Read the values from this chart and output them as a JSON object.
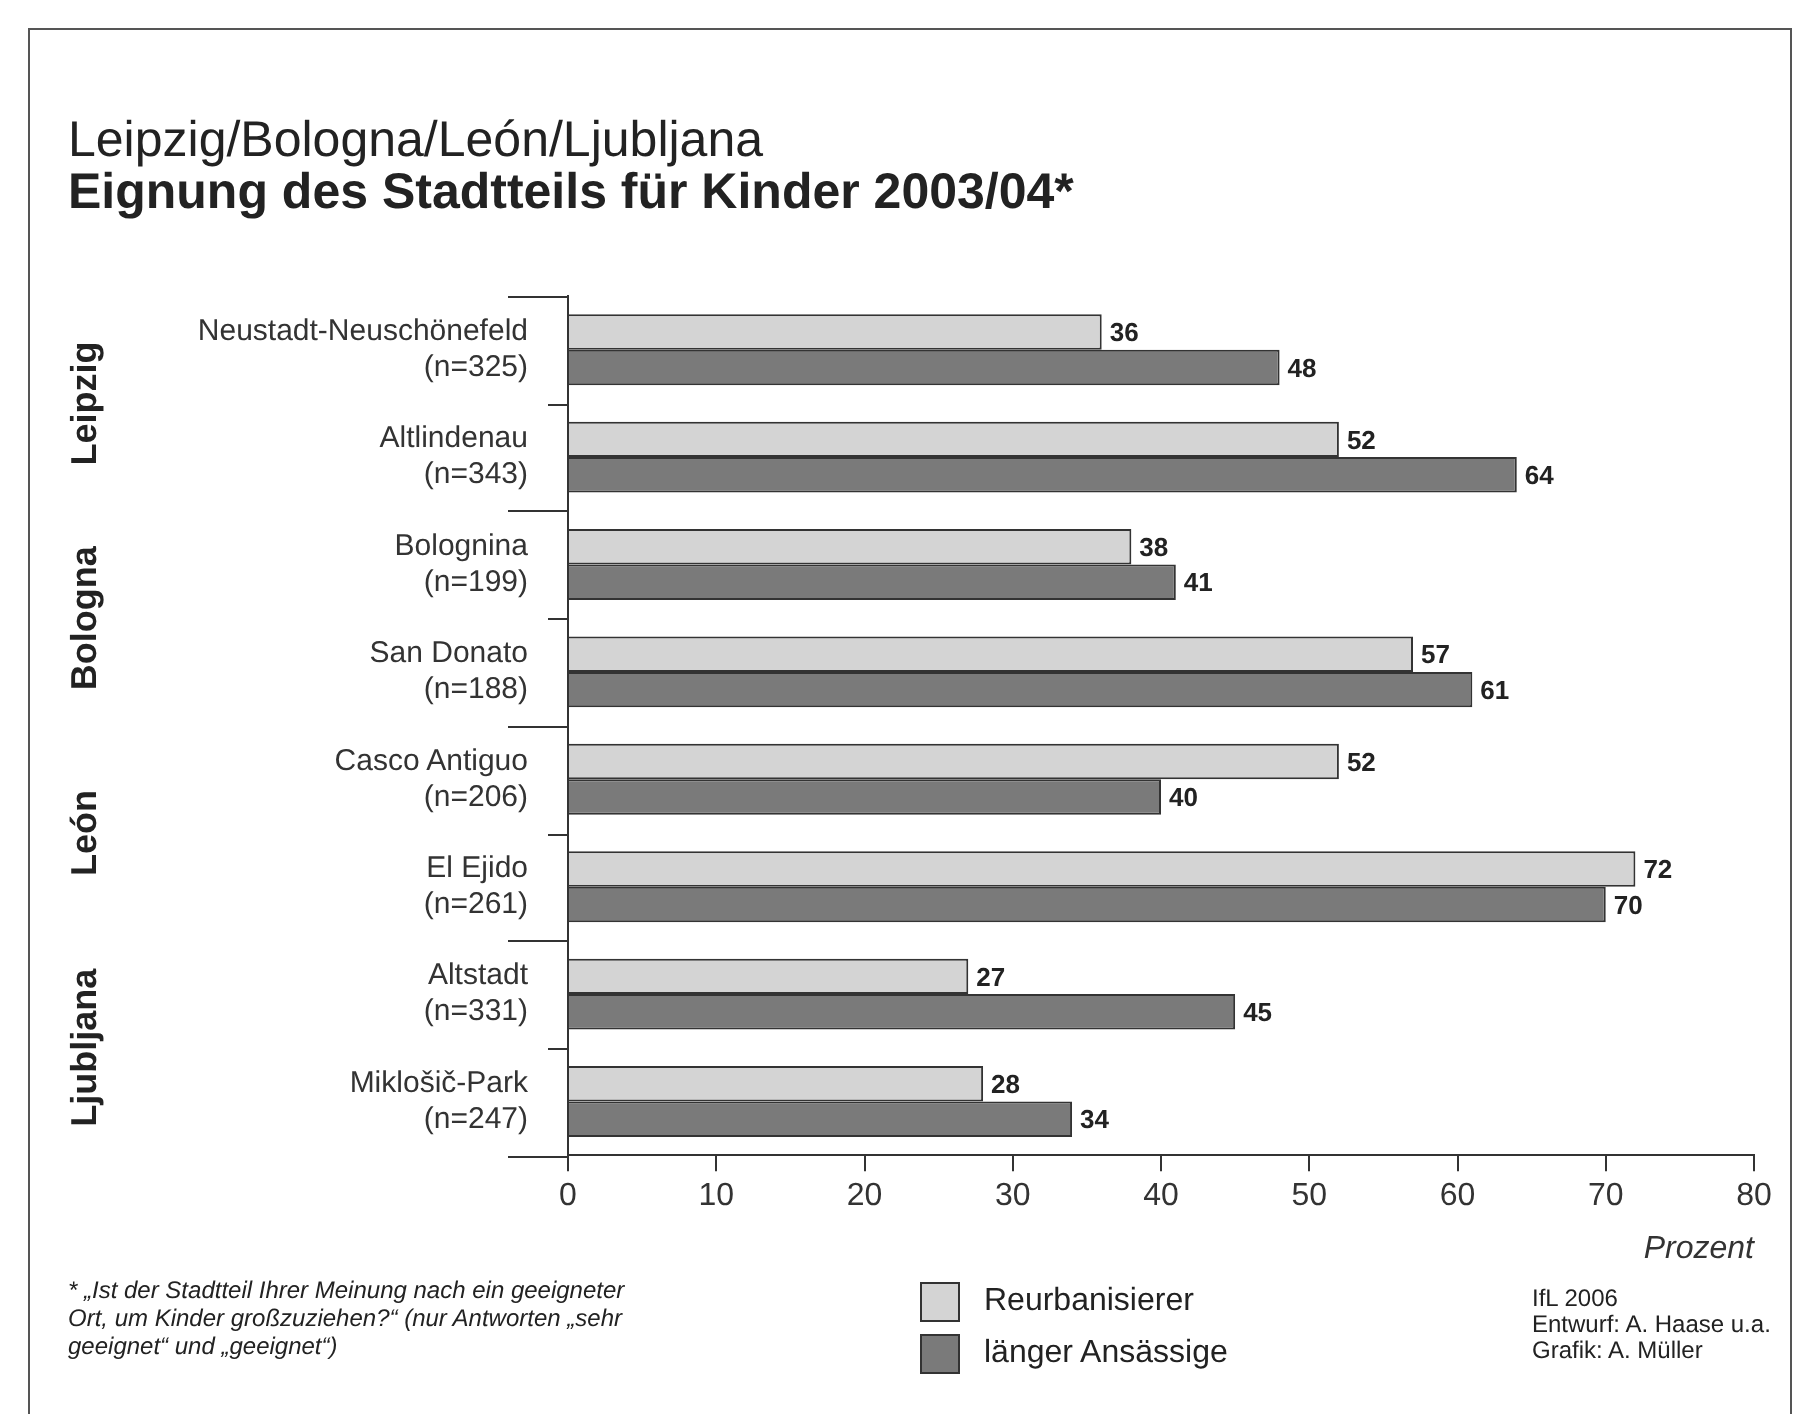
{
  "chart_data": {
    "type": "bar",
    "orientation": "horizontal",
    "subtitle": "Leipzig/Bologna/León/Ljubljana",
    "title": "Eignung des Stadtteils für Kinder 2003/04*",
    "xlabel": "Prozent",
    "categories": [
      "Neustadt-Neuschönefeld\n(n=325)",
      "Altlindenau\n(n=343)",
      "Bolognina\n(n=199)",
      "San Donato\n(n=188)",
      "Casco Antiguo\n(n=206)",
      "El Ejido\n(n=261)",
      "Altstadt\n(n=331)",
      "Miklošič-Park\n(n=247)"
    ],
    "series": [
      {
        "name": "Reurbanisierer",
        "color": "#d4d4d4",
        "values": [
          36,
          52,
          38,
          57,
          52,
          72,
          27,
          28
        ]
      },
      {
        "name": "länger Ansässige",
        "color": "#7a7a7a",
        "values": [
          48,
          64,
          41,
          61,
          40,
          70,
          45,
          34
        ]
      }
    ],
    "xlim": [
      0,
      80
    ],
    "xticks": [
      0,
      10,
      20,
      30,
      40,
      50,
      60,
      70,
      80
    ],
    "grid": false,
    "legend": "bottom",
    "data_labels": true,
    "annotations": [
      "Leipzig",
      "Bologna",
      "León",
      "Ljubljana",
      "* „Ist der Stadtteil Ihrer Meinung nach ein geeigneter Ort, um Kinder großzuziehen?“ (nur Antworten „sehr geeignet“ und „geeignet“)",
      "IfL 2006",
      "Entwurf: A. Haase u.a.",
      "Grafik: A. Müller"
    ]
  }
}
